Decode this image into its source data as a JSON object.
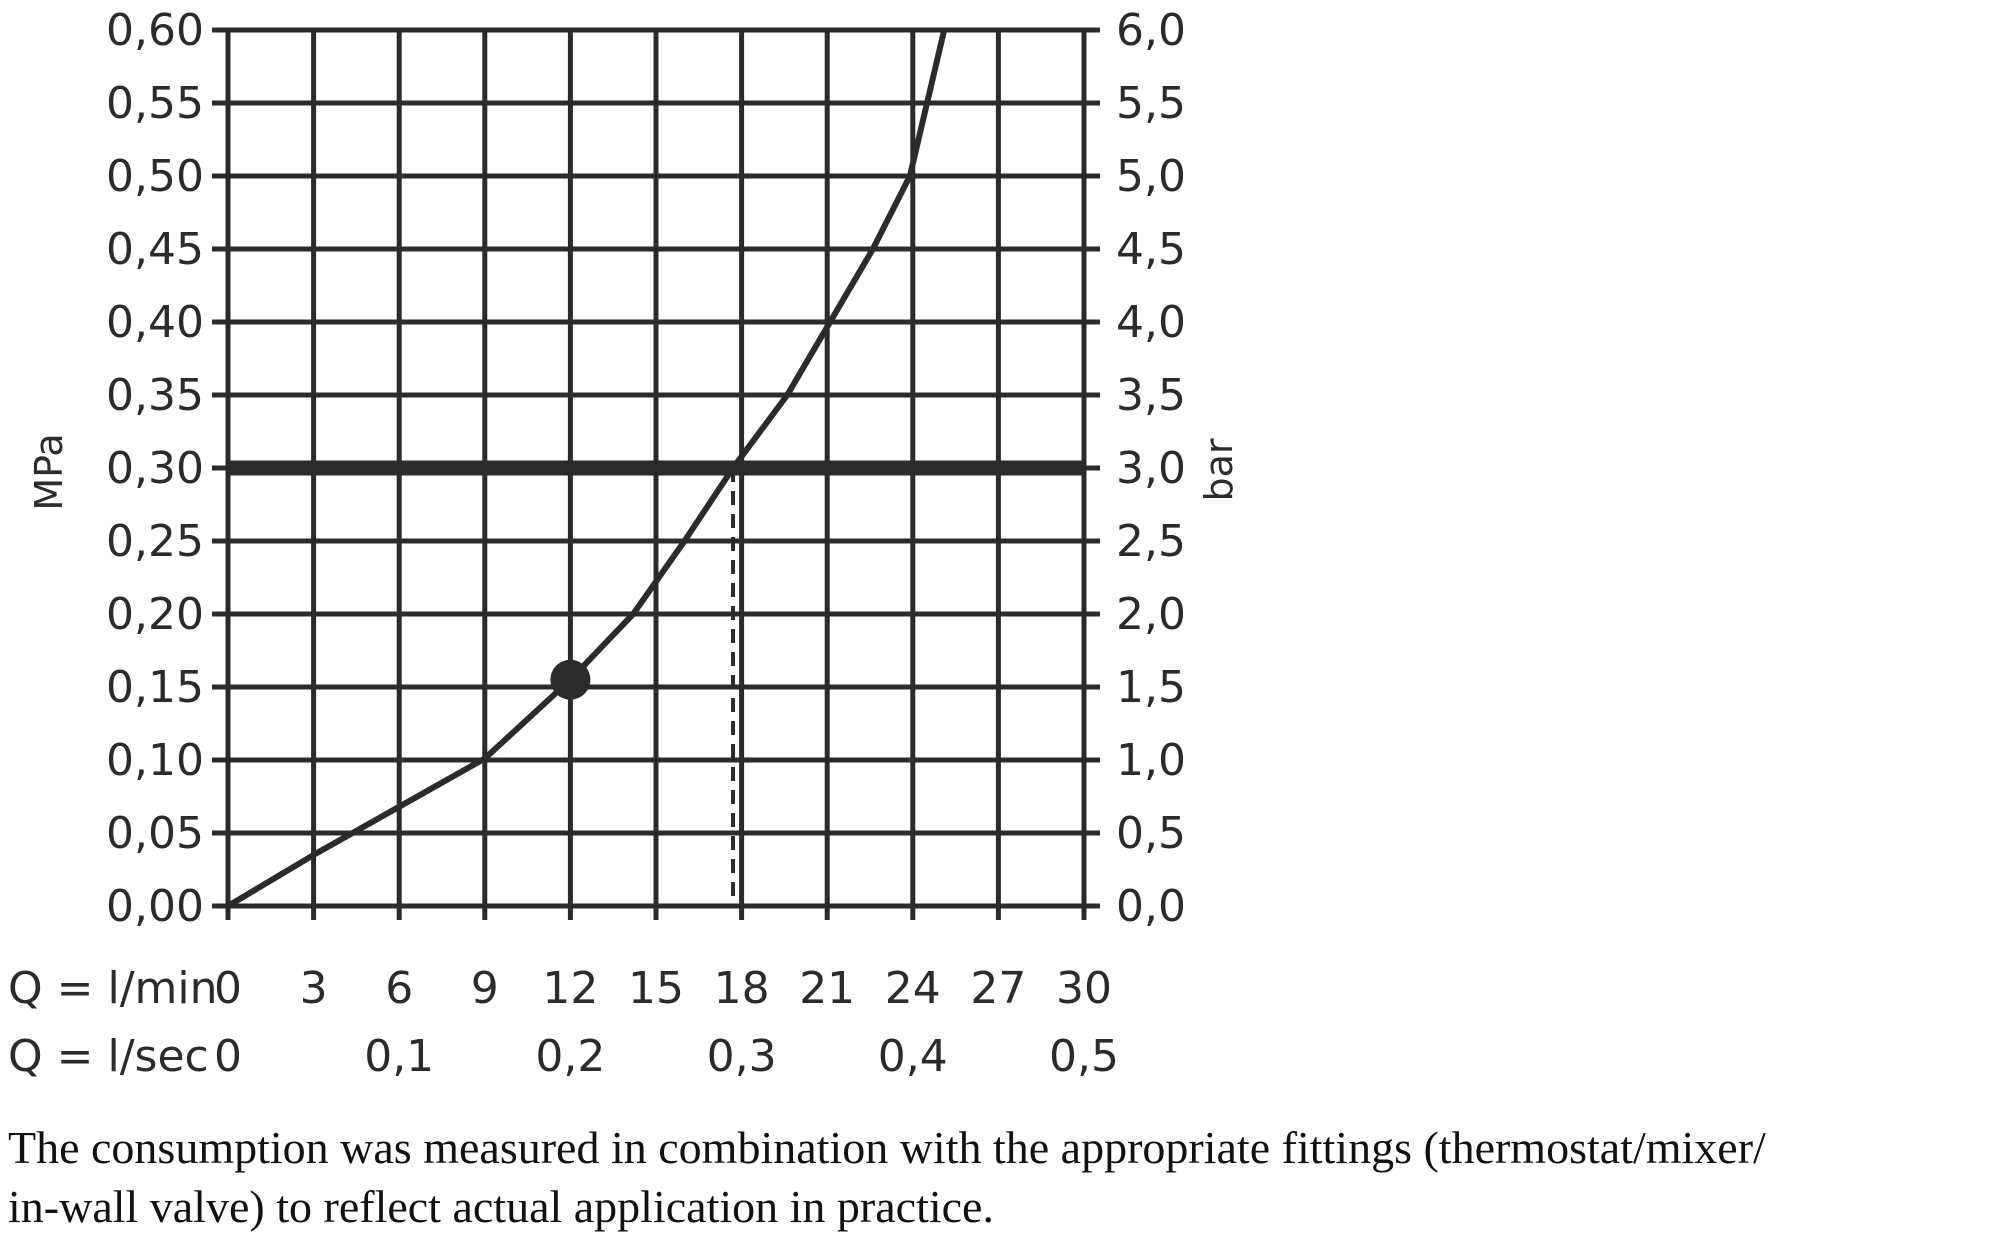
{
  "chart_data": {
    "type": "line",
    "y_left": {
      "label": "MPa",
      "ticks": [
        "0,00",
        "0,05",
        "0,10",
        "0,15",
        "0,20",
        "0,25",
        "0,30",
        "0,35",
        "0,40",
        "0,45",
        "0,50",
        "0,55",
        "0,60"
      ],
      "ylim": [
        0,
        0.6
      ]
    },
    "y_right": {
      "label": "bar",
      "ticks": [
        "0,0",
        "0,5",
        "1,0",
        "1,5",
        "2,0",
        "2,5",
        "3,0",
        "3,5",
        "4,0",
        "4,5",
        "5,0",
        "5,5",
        "6,0"
      ],
      "ylim": [
        0,
        6
      ]
    },
    "x_primary": {
      "label": "Q = l/min",
      "ticks": [
        "0",
        "3",
        "6",
        "9",
        "12",
        "15",
        "18",
        "21",
        "24",
        "27",
        "30"
      ],
      "xlim": [
        0,
        30
      ]
    },
    "x_secondary": {
      "label": "Q = l/sec",
      "ticks": [
        {
          "label": "0",
          "value": 0
        },
        {
          "label": "0,1",
          "value": 6
        },
        {
          "label": "0,2",
          "value": 12
        },
        {
          "label": "0,3",
          "value": 18
        },
        {
          "label": "0,4",
          "value": 24
        },
        {
          "label": "0,5",
          "value": 30
        }
      ]
    },
    "grid": true,
    "series": [
      {
        "x": [
          0,
          3,
          6,
          9,
          12,
          14.2,
          16,
          17.7,
          19.6,
          21.1,
          22.6,
          23.9,
          25.1
        ],
        "y": [
          0,
          0.035,
          0.068,
          0.101,
          0.155,
          0.2,
          0.25,
          0.3,
          0.35,
          0.4,
          0.45,
          0.5,
          0.6
        ]
      }
    ],
    "reference_line": {
      "y": 0.3
    },
    "reference_drop": {
      "x": 17.7,
      "y": 0.3
    },
    "marker": {
      "x": 12,
      "y": 0.155
    },
    "colors": {
      "ink": "#2b2b2b"
    }
  },
  "caption": {
    "line1": "The consumption was measured in combination with the appropriate fittings (thermostat/mixer/",
    "line2": "in-wall valve) to reflect actual application in practice."
  }
}
